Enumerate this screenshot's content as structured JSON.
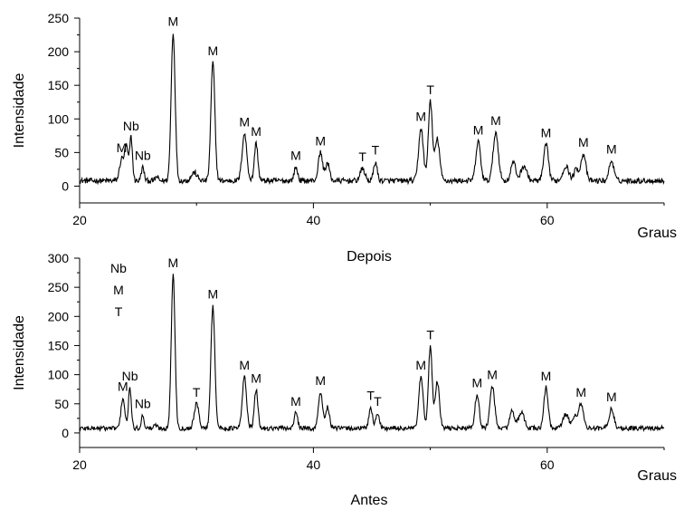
{
  "chart_data": [
    {
      "type": "line",
      "id": "depois",
      "caption": "Depois",
      "xlabel": "Graus",
      "ylabel": "Intensidade",
      "xlim": [
        20,
        70
      ],
      "ylim": [
        -25,
        250
      ],
      "xticks": [
        20,
        40,
        60
      ],
      "yticks": [
        0,
        50,
        100,
        150,
        200,
        250
      ],
      "grid": false,
      "baseline": 8,
      "noise": 4,
      "series": [
        {
          "peaks": [
            {
              "x": 23.6,
              "y": 40,
              "w": 0.18,
              "label": "M"
            },
            {
              "x": 24.0,
              "y": 58,
              "w": 0.15
            },
            {
              "x": 24.4,
              "y": 72,
              "w": 0.12,
              "label": "Nb"
            },
            {
              "x": 25.4,
              "y": 28,
              "w": 0.12,
              "label": "Nb"
            },
            {
              "x": 26.6,
              "y": 14,
              "w": 0.12
            },
            {
              "x": 28.0,
              "y": 228,
              "w": 0.17,
              "label": "M"
            },
            {
              "x": 29.8,
              "y": 20,
              "w": 0.25
            },
            {
              "x": 31.4,
              "y": 184,
              "w": 0.17,
              "label": "M"
            },
            {
              "x": 34.1,
              "y": 78,
              "w": 0.2,
              "label": "M"
            },
            {
              "x": 35.1,
              "y": 64,
              "w": 0.15,
              "label": "M"
            },
            {
              "x": 38.5,
              "y": 28,
              "w": 0.15,
              "label": "M"
            },
            {
              "x": 40.6,
              "y": 50,
              "w": 0.18,
              "label": "M"
            },
            {
              "x": 41.2,
              "y": 34,
              "w": 0.18
            },
            {
              "x": 44.2,
              "y": 26,
              "w": 0.2,
              "label": "T"
            },
            {
              "x": 45.3,
              "y": 36,
              "w": 0.15,
              "label": "T"
            },
            {
              "x": 49.2,
              "y": 86,
              "w": 0.2,
              "label": "M"
            },
            {
              "x": 50.0,
              "y": 126,
              "w": 0.17,
              "label": "T"
            },
            {
              "x": 50.6,
              "y": 70,
              "w": 0.2
            },
            {
              "x": 54.1,
              "y": 66,
              "w": 0.2,
              "label": "M"
            },
            {
              "x": 55.6,
              "y": 80,
              "w": 0.22,
              "label": "M"
            },
            {
              "x": 57.1,
              "y": 36,
              "w": 0.2
            },
            {
              "x": 58.0,
              "y": 30,
              "w": 0.25
            },
            {
              "x": 59.9,
              "y": 62,
              "w": 0.2,
              "label": "M"
            },
            {
              "x": 61.6,
              "y": 30,
              "w": 0.25
            },
            {
              "x": 62.5,
              "y": 26,
              "w": 0.2
            },
            {
              "x": 63.1,
              "y": 48,
              "w": 0.2,
              "label": "M"
            },
            {
              "x": 65.5,
              "y": 38,
              "w": 0.2,
              "label": "M"
            }
          ]
        }
      ]
    },
    {
      "type": "line",
      "id": "antes",
      "caption": "Antes",
      "xlabel": "Graus",
      "ylabel": "Intensidade",
      "xlim": [
        20,
        70
      ],
      "ylim": [
        -25,
        300
      ],
      "xticks": [
        20,
        40,
        60
      ],
      "yticks": [
        0,
        50,
        100,
        150,
        200,
        250,
        300
      ],
      "grid": false,
      "baseline": 8,
      "noise": 4,
      "legend_stack": [
        "Nb",
        "M",
        "T"
      ],
      "series": [
        {
          "peaks": [
            {
              "x": 23.7,
              "y": 60,
              "w": 0.16,
              "label": "M"
            },
            {
              "x": 24.3,
              "y": 78,
              "w": 0.12,
              "label": "Nb"
            },
            {
              "x": 25.4,
              "y": 30,
              "w": 0.12,
              "label": "Nb"
            },
            {
              "x": 26.5,
              "y": 14,
              "w": 0.12
            },
            {
              "x": 28.0,
              "y": 272,
              "w": 0.16,
              "label": "M"
            },
            {
              "x": 30.0,
              "y": 50,
              "w": 0.2,
              "label": "T"
            },
            {
              "x": 31.4,
              "y": 218,
              "w": 0.17,
              "label": "M"
            },
            {
              "x": 34.1,
              "y": 96,
              "w": 0.18,
              "label": "M"
            },
            {
              "x": 35.1,
              "y": 74,
              "w": 0.15,
              "label": "M"
            },
            {
              "x": 38.5,
              "y": 34,
              "w": 0.15,
              "label": "M"
            },
            {
              "x": 40.6,
              "y": 70,
              "w": 0.17,
              "label": "M"
            },
            {
              "x": 41.2,
              "y": 44,
              "w": 0.17
            },
            {
              "x": 44.9,
              "y": 44,
              "w": 0.15,
              "label": "T"
            },
            {
              "x": 45.5,
              "y": 34,
              "w": 0.15,
              "label": "T"
            },
            {
              "x": 49.2,
              "y": 96,
              "w": 0.18,
              "label": "M"
            },
            {
              "x": 50.0,
              "y": 148,
              "w": 0.16,
              "label": "T"
            },
            {
              "x": 50.6,
              "y": 88,
              "w": 0.18
            },
            {
              "x": 54.0,
              "y": 66,
              "w": 0.18,
              "label": "M"
            },
            {
              "x": 55.3,
              "y": 80,
              "w": 0.2,
              "label": "M"
            },
            {
              "x": 57.0,
              "y": 38,
              "w": 0.2
            },
            {
              "x": 57.8,
              "y": 34,
              "w": 0.25
            },
            {
              "x": 59.9,
              "y": 78,
              "w": 0.18,
              "label": "M"
            },
            {
              "x": 61.6,
              "y": 32,
              "w": 0.25
            },
            {
              "x": 62.4,
              "y": 28,
              "w": 0.2
            },
            {
              "x": 62.9,
              "y": 50,
              "w": 0.2,
              "label": "M"
            },
            {
              "x": 65.5,
              "y": 42,
              "w": 0.2,
              "label": "M"
            }
          ]
        }
      ]
    }
  ]
}
